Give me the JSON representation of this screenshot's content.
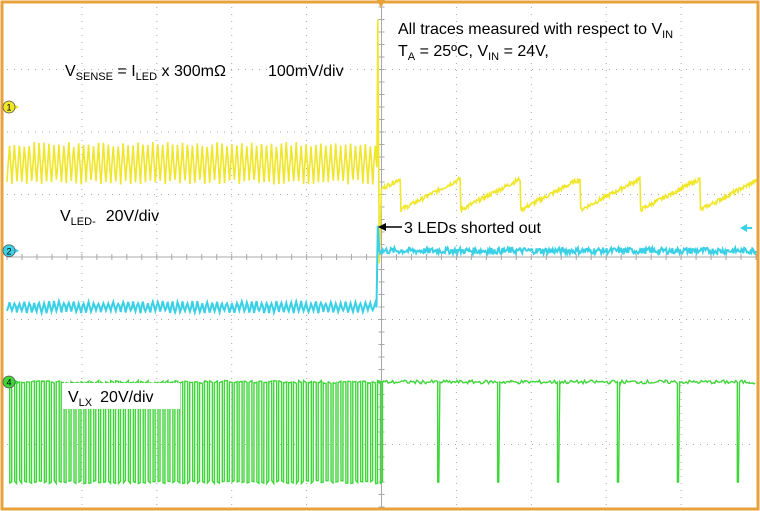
{
  "chart_data": {
    "type": "line",
    "title": "",
    "xlabel": "",
    "ylabel": "",
    "grid": true,
    "divisions": {
      "horizontal": 10,
      "vertical": 8
    },
    "colors": {
      "background": "#ffffff",
      "frame": "#e8a23a",
      "grid": "#a8a8a8",
      "ch1": "#f0e62a",
      "ch2": "#3ad0e6",
      "ch4": "#3fd63a"
    },
    "markers": {
      "ch1": "1",
      "ch2": "2",
      "ch4": "4"
    },
    "labels": {
      "vsense": {
        "v": "V",
        "sense_sub": "SENSE",
        "eq": " = I",
        "led_sub": "LED",
        "rest": " x 300mΩ",
        "scale": "100mV/div"
      },
      "vled": {
        "v": "V",
        "sub": "LED-",
        "scale": "20V/div"
      },
      "vlx": {
        "v": "V",
        "sub": "LX",
        "scale": "20V/div"
      },
      "note1": {
        "text": "All traces measured with respect to V",
        "sub": "IN"
      },
      "note2": {
        "t": "T",
        "t_sub": "A",
        "mid": " = 25ºC, V",
        "v_sub": "IN",
        "end": " = 24V,"
      },
      "annotation": "3 LEDs shorted out"
    },
    "event_division": 4.95,
    "series": [
      {
        "name": "VSENSE",
        "channel": "ch1",
        "before_event": {
          "period_div": 0.066,
          "level_div": 5.5,
          "ripple_div": 0.6
        },
        "after_event": {
          "period_div": 0.8,
          "level_div": 5.0,
          "sag_div": 0.5
        }
      },
      {
        "name": "VLED-",
        "channel": "ch2",
        "before_event": {
          "period_div": 0.066,
          "level_div": 3.2,
          "ripple_div": 0.15
        },
        "after_event": {
          "level_div": 4.1,
          "ripple_div": 0.05
        }
      },
      {
        "name": "VLX",
        "channel": "ch4",
        "before_event": {
          "period_div": 0.066,
          "high_div": 2.0,
          "low_div": 0.4
        },
        "after_event": {
          "period_div": 0.8,
          "high_div": 2.0,
          "low_div": 0.4
        }
      }
    ]
  }
}
